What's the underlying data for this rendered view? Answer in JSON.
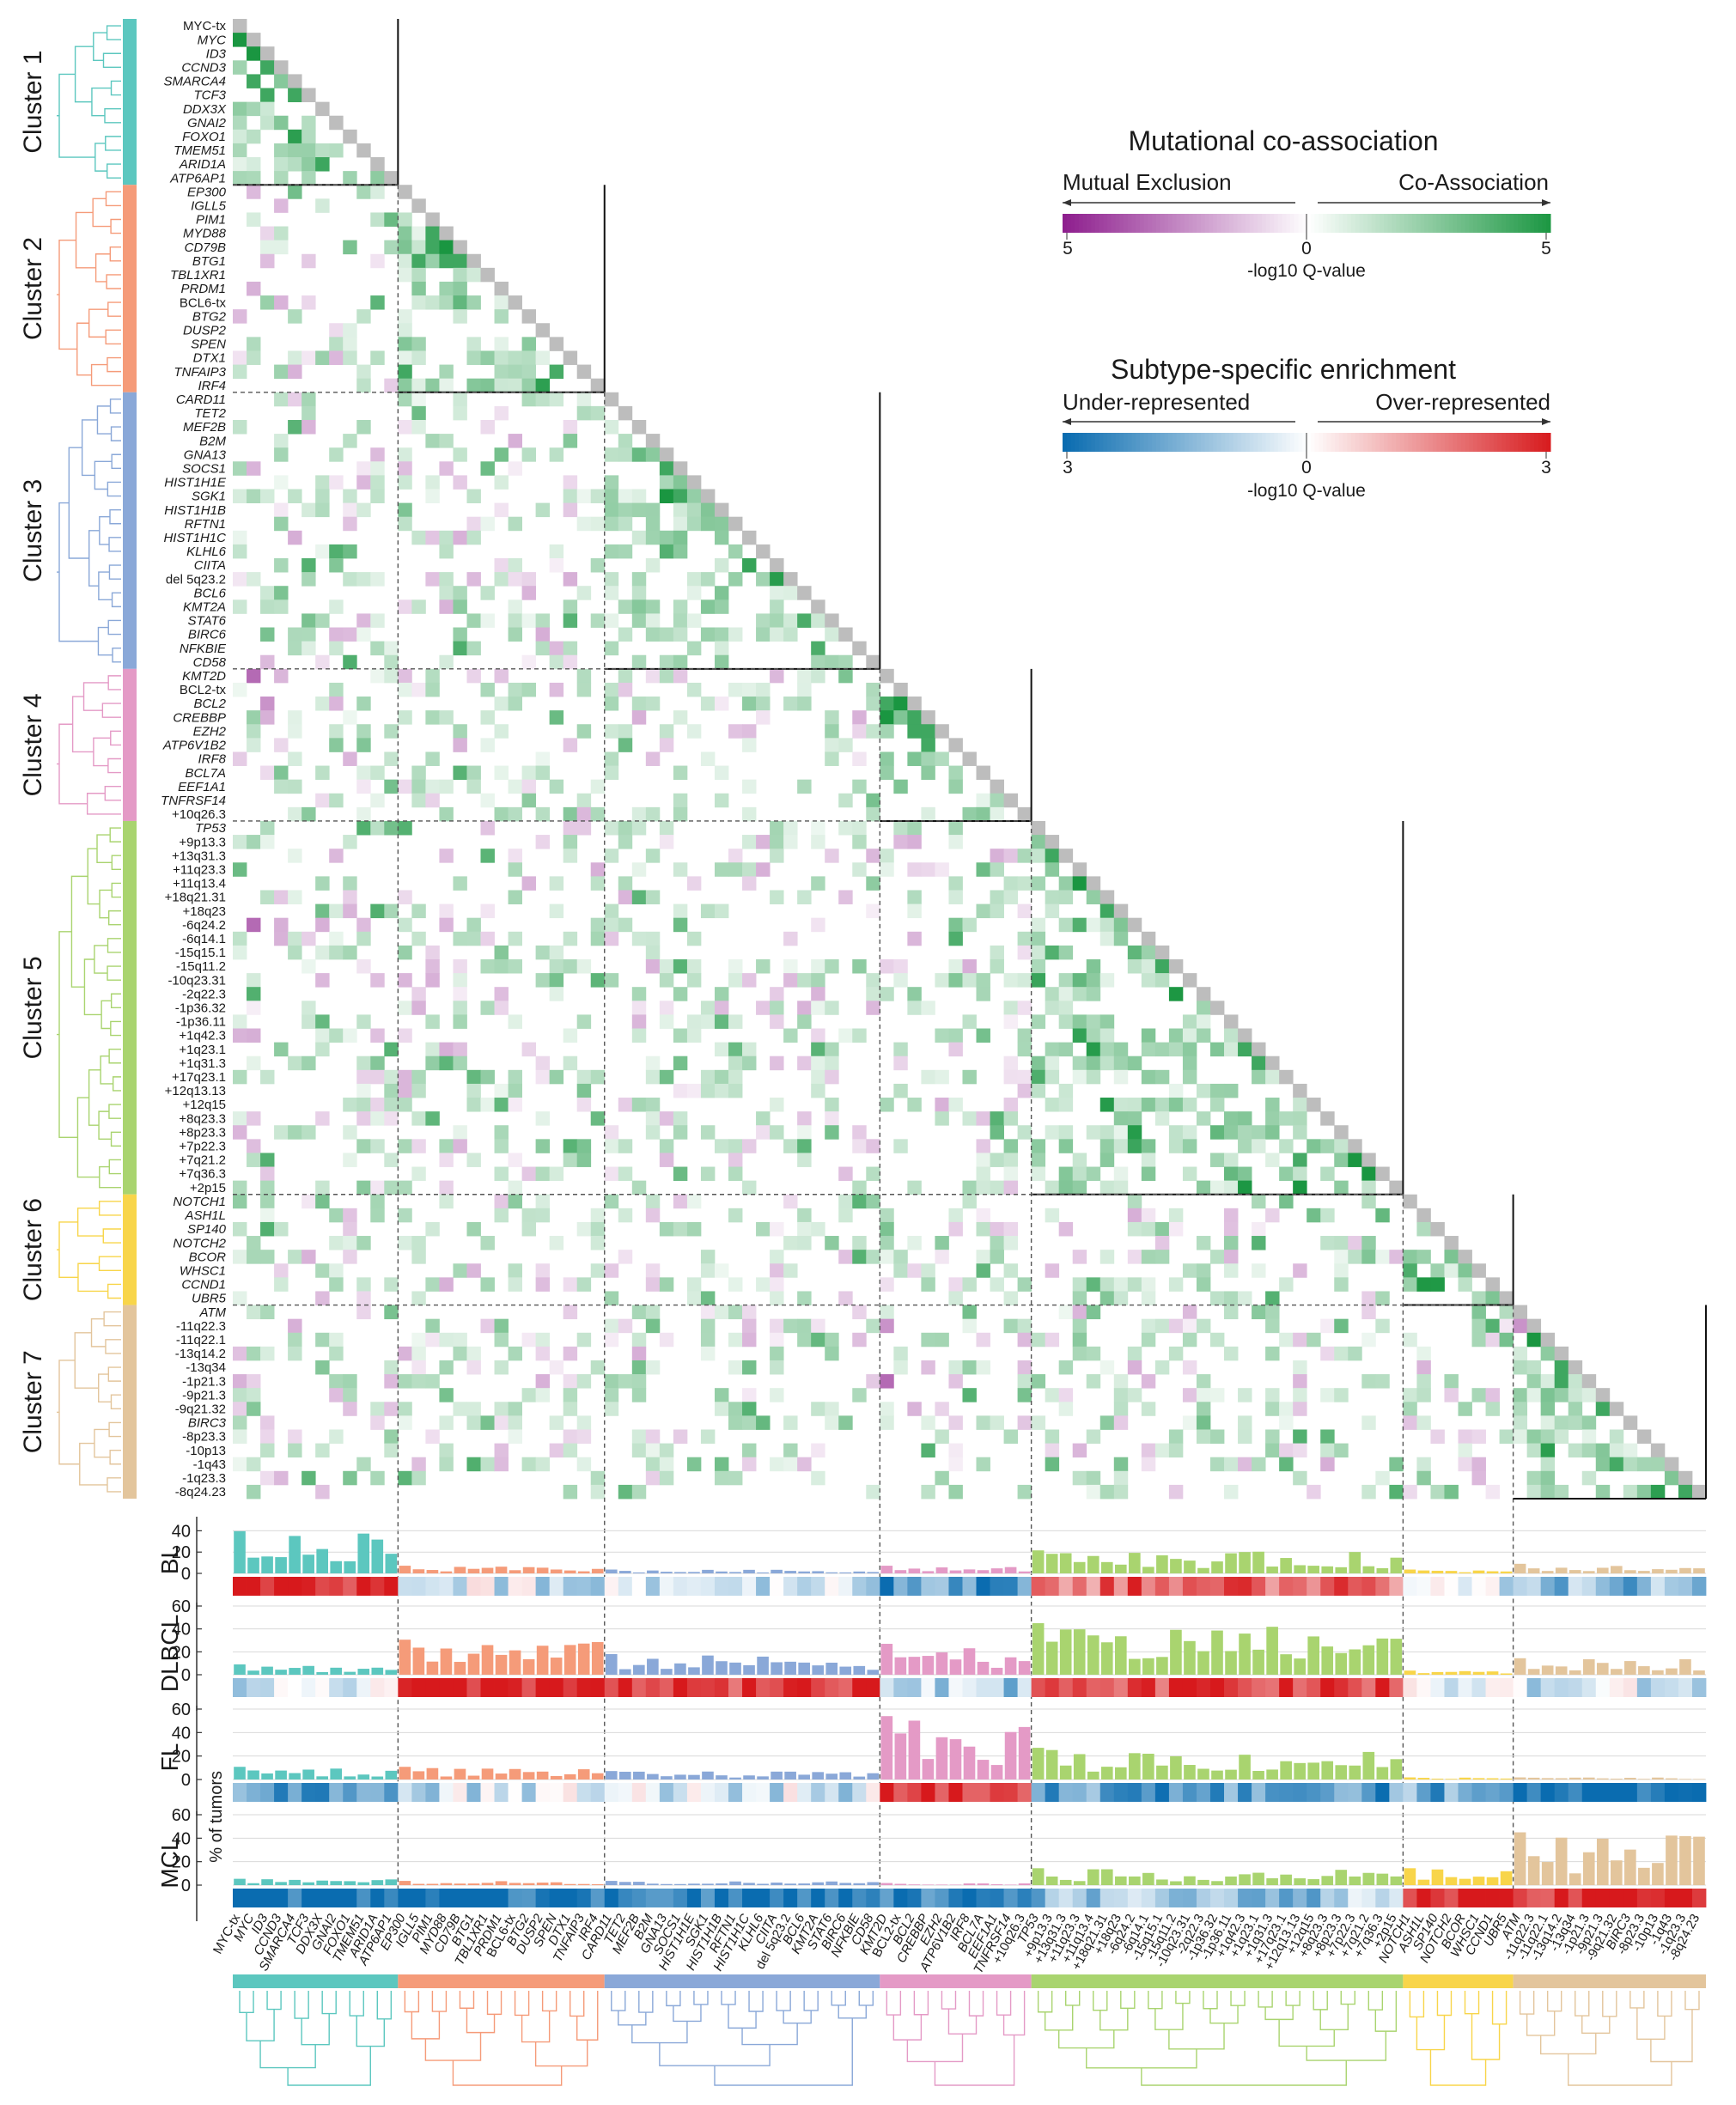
{
  "colors": {
    "cluster": [
      "#5cc7bf",
      "#f59b79",
      "#8aa8d8",
      "#e49ac6",
      "#a9d46f",
      "#f8d54a",
      "#e3c59c"
    ],
    "coassoc_high": "#1a9641",
    "exclusion_high": "#8e1f8e",
    "over_high": "#d7191c",
    "under_high": "#0a6cb0",
    "diag": "#bdbdbd"
  },
  "clusters": [
    {
      "name": "Cluster 1",
      "genes": [
        "MYC-tx",
        "MYC",
        "ID3",
        "CCND3",
        "SMARCA4",
        "TCF3",
        "DDX3X",
        "GNAI2",
        "FOXO1",
        "TMEM51",
        "ARID1A",
        "ATP6AP1"
      ]
    },
    {
      "name": "Cluster 2",
      "genes": [
        "EP300",
        "IGLL5",
        "PIM1",
        "MYD88",
        "CD79B",
        "BTG1",
        "TBL1XR1",
        "PRDM1",
        "BCL6-tx",
        "BTG2",
        "DUSP2",
        "SPEN",
        "DTX1",
        "TNFAIP3",
        "IRF4"
      ]
    },
    {
      "name": "Cluster 3",
      "genes": [
        "CARD11",
        "TET2",
        "MEF2B",
        "B2M",
        "GNA13",
        "SOCS1",
        "HIST1H1E",
        "SGK1",
        "HIST1H1B",
        "RFTN1",
        "HIST1H1C",
        "KLHL6",
        "CIITA",
        "del 5q23.2",
        "BCL6",
        "KMT2A",
        "STAT6",
        "BIRC6",
        "NFKBIE",
        "CD58"
      ]
    },
    {
      "name": "Cluster 4",
      "genes": [
        "KMT2D",
        "BCL2-tx",
        "BCL2",
        "CREBBP",
        "EZH2",
        "ATP6V1B2",
        "IRF8",
        "BCL7A",
        "EEF1A1",
        "TNFRSF14",
        "+10q26.3"
      ]
    },
    {
      "name": "Cluster 5",
      "genes": [
        "TP53",
        "+9p13.3",
        "+13q31.3",
        "+11q23.3",
        "+11q13.4",
        "+18q21.31",
        "+18q23",
        "-6q24.2",
        "-6q14.1",
        "-15q15.1",
        "-15q11.2",
        "-10q23.31",
        "-2q22.3",
        "-1p36.32",
        "-1p36.11",
        "+1q42.3",
        "+1q23.1",
        "+1q31.3",
        "+17q23.1",
        "+12q13.13",
        "+12q15",
        "+8q23.3",
        "+8p23.3",
        "+7p22.3",
        "+7q21.2",
        "+7q36.3",
        "+2p15"
      ]
    },
    {
      "name": "Cluster 6",
      "genes": [
        "NOTCH1",
        "ASH1L",
        "SP140",
        "NOTCH2",
        "BCOR",
        "WHSC1",
        "CCND1",
        "UBR5"
      ]
    },
    {
      "name": "Cluster 7",
      "genes": [
        "ATM",
        "-11q22.3",
        "-11q22.1",
        "-13q14.2",
        "-13q34",
        "-1p21.3",
        "-9p21.3",
        "-9q21.32",
        "BIRC3",
        "-8p23.3",
        "-10p13",
        "-1q43",
        "-1q23.3",
        "-8q24.23"
      ]
    }
  ],
  "legend": {
    "coassoc": {
      "title": "Mutational co-association",
      "left": "Mutual Exclusion",
      "right": "Co-Association",
      "min": "5",
      "mid": "0",
      "max": "5",
      "axis": "-log10 Q-value"
    },
    "enrich": {
      "title": "Subtype-specific enrichment",
      "left": "Under-represented",
      "right": "Over-represented",
      "min": "3",
      "mid": "0",
      "max": "3",
      "axis": "-log10 Q-value"
    }
  },
  "chart_data": {
    "type": "heatmap",
    "title": "Mutational co-association",
    "value_scale": "-log10 Q-value (positive = co-association, negative = mutual exclusion)",
    "strong_co_associations": [
      [
        "MYC",
        "MYC-tx",
        5
      ],
      [
        "ID3",
        "MYC",
        5
      ],
      [
        "CCND3",
        "ID3",
        4
      ],
      [
        "SMARCA4",
        "MYC",
        4
      ],
      [
        "TCF3",
        "ID3",
        4
      ],
      [
        "TCF3",
        "SMARCA4",
        4
      ],
      [
        "CD79B",
        "MYD88",
        5
      ],
      [
        "MYD88",
        "PIM1",
        4
      ],
      [
        "CD79B",
        "PIM1",
        4
      ],
      [
        "BTG1",
        "MYD88",
        4
      ],
      [
        "BTG1",
        "CD79B",
        4
      ],
      [
        "SOCS1",
        "GNA13",
        4
      ],
      [
        "SGK1",
        "GNA13",
        5
      ],
      [
        "SGK1",
        "SOCS1",
        4
      ],
      [
        "GNA13",
        "MEF2B",
        3
      ],
      [
        "BCL2",
        "BCL2-tx",
        5
      ],
      [
        "CREBBP",
        "KMT2D",
        5
      ],
      [
        "CREBBP",
        "BCL2",
        4
      ],
      [
        "EZH2",
        "BCL2",
        4
      ],
      [
        "EZH2",
        "CREBBP",
        4
      ],
      [
        "+13q31.3",
        "+9p13.3",
        4
      ],
      [
        "+11q13.4",
        "+11q23.3",
        5
      ],
      [
        "+18q23",
        "+18q21.31",
        4
      ],
      [
        "-15q11.2",
        "-15q15.1",
        4
      ],
      [
        "+1q23.1",
        "+1q42.3",
        4
      ],
      [
        "+1q31.3",
        "+1q23.1",
        4
      ],
      [
        "+7q21.2",
        "+7p22.3",
        5
      ],
      [
        "+7q36.3",
        "+7q21.2",
        5
      ],
      [
        "-11q22.1",
        "-11q22.3",
        5
      ],
      [
        "-13q34",
        "-13q14.2",
        4
      ],
      [
        "-1p21.3",
        "-13q14.2",
        4
      ],
      [
        "-9q21.32",
        "-9p21.3",
        4
      ],
      [
        "-8q24.23",
        "-1q23.3",
        4
      ]
    ],
    "mutual_exclusions": [
      [
        "KMT2D",
        "MYC",
        -3
      ],
      [
        "BCL2",
        "ID3",
        -2
      ],
      [
        "-6q24.2",
        "MYC",
        -3
      ],
      [
        "-11q22.3",
        "KMT2D",
        -2
      ],
      [
        "-1p21.3",
        "KMT2D",
        -3
      ],
      [
        "ATM",
        "-11q22.3",
        -2
      ]
    ],
    "bar_panels": [
      {
        "name": "BL",
        "ylim": [
          0,
          50
        ],
        "ticks": [
          "40",
          "20",
          "0"
        ]
      },
      {
        "name": "DLBCL",
        "ylim": [
          0,
          60
        ],
        "ticks": [
          "60",
          "40",
          "20",
          "0"
        ]
      },
      {
        "name": "FL",
        "ylim": [
          0,
          60
        ],
        "ticks": [
          "60",
          "40",
          "20",
          "0"
        ]
      },
      {
        "name": "MCL",
        "ylim": [
          0,
          60
        ],
        "ticks": [
          "60",
          "40",
          "20",
          "0"
        ]
      }
    ],
    "ylabel": "% of tumors",
    "panel_means_by_cluster": {
      "BL": [
        22,
        4,
        2,
        4,
        12,
        2,
        5
      ],
      "DLBCL": [
        5,
        17,
        10,
        15,
        25,
        2,
        8
      ],
      "FL": [
        6,
        6,
        4,
        30,
        15,
        1,
        1
      ],
      "MCL": [
        3,
        2,
        2,
        1,
        8,
        8,
        25
      ]
    },
    "enrichment_by_cluster": {
      "BL": [
        3,
        -0.5,
        -0.4,
        -2,
        2,
        -0.6,
        -1.5
      ],
      "DLBCL": [
        -0.6,
        3,
        2.4,
        -1,
        2.6,
        -0.3,
        -0.6
      ],
      "FL": [
        -2,
        -0.6,
        -0.6,
        3,
        -2,
        -1.8,
        -3
      ],
      "MCL": [
        -3,
        -3,
        -2.8,
        -2.6,
        -1.2,
        3,
        3
      ]
    }
  }
}
